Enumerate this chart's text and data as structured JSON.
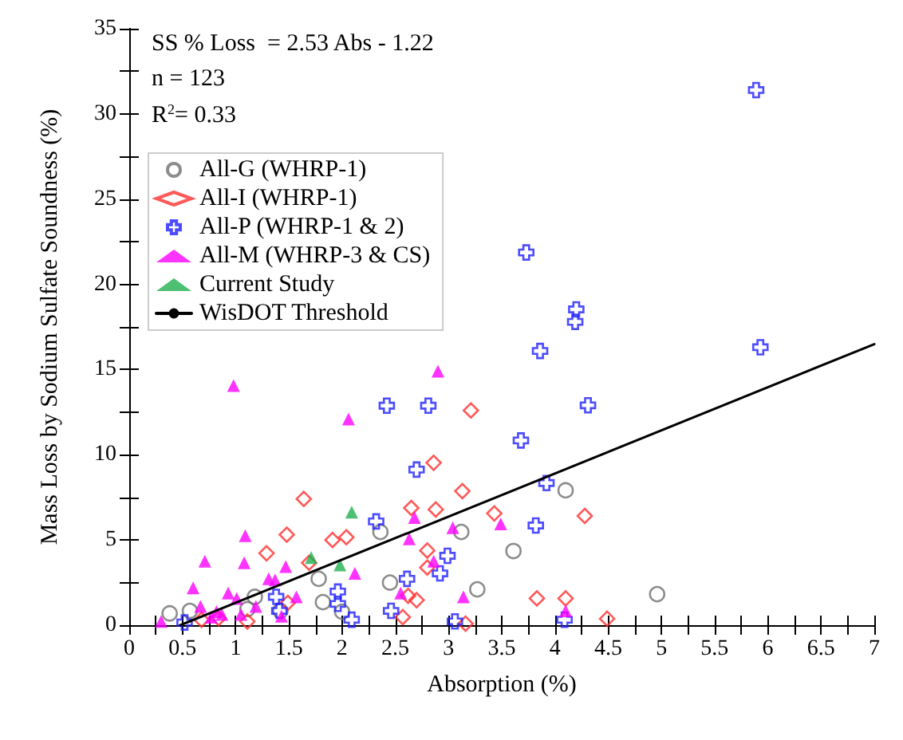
{
  "chart_data": {
    "type": "scatter",
    "xlabel": "Absorption (%)",
    "ylabel": "Mass Loss by Sodium Sulfate Soundness (%)",
    "annotations": [
      "SS % Loss  = 2.53 Abs - 1.22",
      "n = 123",
      "R$^{2}$= 0.33"
    ],
    "xlim": [
      0,
      7
    ],
    "xticks": [
      0,
      0.5,
      1,
      1.5,
      2,
      2.5,
      3,
      3.5,
      4,
      4.5,
      5,
      5.5,
      6,
      6.5,
      7
    ],
    "ylim": [
      0,
      35
    ],
    "yticks": [
      0,
      5,
      10,
      15,
      20,
      25,
      30,
      35
    ],
    "grid": false,
    "legend": "top left",
    "series": [
      {
        "name": "All-G (WHRP-1)",
        "color": "#707070",
        "marker": "circle",
        "x": [
          0.38,
          0.57,
          1.11,
          1.18,
          1.42,
          1.78,
          1.82,
          2.0,
          2.36,
          2.45,
          3.12,
          3.27,
          3.61,
          4.1,
          4.96
        ],
        "values": [
          0.69,
          0.84,
          0.94,
          1.66,
          0.84,
          2.72,
          1.35,
          0.79,
          5.47,
          2.5,
          5.47,
          2.1,
          4.35,
          7.91,
          1.82
        ]
      },
      {
        "name": "All-I (WHRP-1)",
        "color": "#ff3030",
        "marker": "diamond",
        "x": [
          0.68,
          0.84,
          1.11,
          1.29,
          1.48,
          1.49,
          1.64,
          1.69,
          1.91,
          2.04,
          2.57,
          2.62,
          2.7,
          2.65,
          2.86,
          2.88,
          2.8,
          2.8,
          3.13,
          3.21,
          3.43,
          3.16,
          3.83,
          4.1,
          4.28,
          4.49
        ],
        "values": [
          0.32,
          0.41,
          0.22,
          4.22,
          5.31,
          1.31,
          7.41,
          3.66,
          5.0,
          5.16,
          0.47,
          1.72,
          1.47,
          6.88,
          9.53,
          6.79,
          4.38,
          3.38,
          7.87,
          12.6,
          6.56,
          0.09,
          1.57,
          1.57,
          6.41,
          0.38
        ]
      },
      {
        "name": "All-P (WHRP-1 & 2)",
        "color": "#2020ff",
        "marker": "cross",
        "x": [
          0.52,
          1.38,
          1.41,
          1.96,
          1.96,
          2.09,
          2.32,
          2.42,
          2.81,
          2.7,
          2.61,
          2.46,
          2.99,
          2.92,
          3.06,
          3.68,
          3.92,
          3.82,
          3.86,
          4.31,
          4.19,
          4.09,
          3.73,
          4.2,
          5.89,
          5.93
        ],
        "values": [
          0.16,
          1.66,
          0.84,
          1.97,
          1.25,
          0.32,
          6.09,
          12.88,
          12.88,
          9.13,
          2.72,
          0.84,
          4.07,
          3.04,
          0.22,
          10.84,
          8.34,
          5.85,
          16.09,
          12.9,
          17.8,
          0.32,
          21.87,
          18.53,
          31.4,
          16.31
        ]
      },
      {
        "name": "All-M (WHRP-3 & CS)",
        "color": "#ff00ff",
        "marker": "triangle",
        "x": [
          0.3,
          0.6,
          0.67,
          0.71,
          0.77,
          0.82,
          0.87,
          0.93,
          0.98,
          1.01,
          1.05,
          1.09,
          1.08,
          1.19,
          1.31,
          1.37,
          1.43,
          1.47,
          1.57,
          2.06,
          2.12,
          2.9,
          2.68,
          2.63,
          3.04,
          3.49,
          2.86,
          2.55,
          3.14,
          4.1
        ],
        "values": [
          0.22,
          2.19,
          1.1,
          3.75,
          0.47,
          0.79,
          0.63,
          1.88,
          14.06,
          1.57,
          0.63,
          5.25,
          3.66,
          1.1,
          2.72,
          2.66,
          0.53,
          3.44,
          1.66,
          12.09,
          3.04,
          14.9,
          6.32,
          5.06,
          5.72,
          5.94,
          3.75,
          1.88,
          1.66,
          0.84
        ]
      },
      {
        "name": "Current Study",
        "color": "#20b050",
        "marker": "triangle",
        "x": [
          2.09,
          1.71,
          1.98
        ],
        "values": [
          6.63,
          3.97,
          3.53
        ]
      },
      {
        "name": "WisDOT Threshold",
        "type": "line",
        "color": "#000000",
        "marker": "none",
        "line_style": "solid",
        "x": [
          0.48,
          7
        ],
        "values": [
          0,
          16.49
        ]
      }
    ]
  }
}
